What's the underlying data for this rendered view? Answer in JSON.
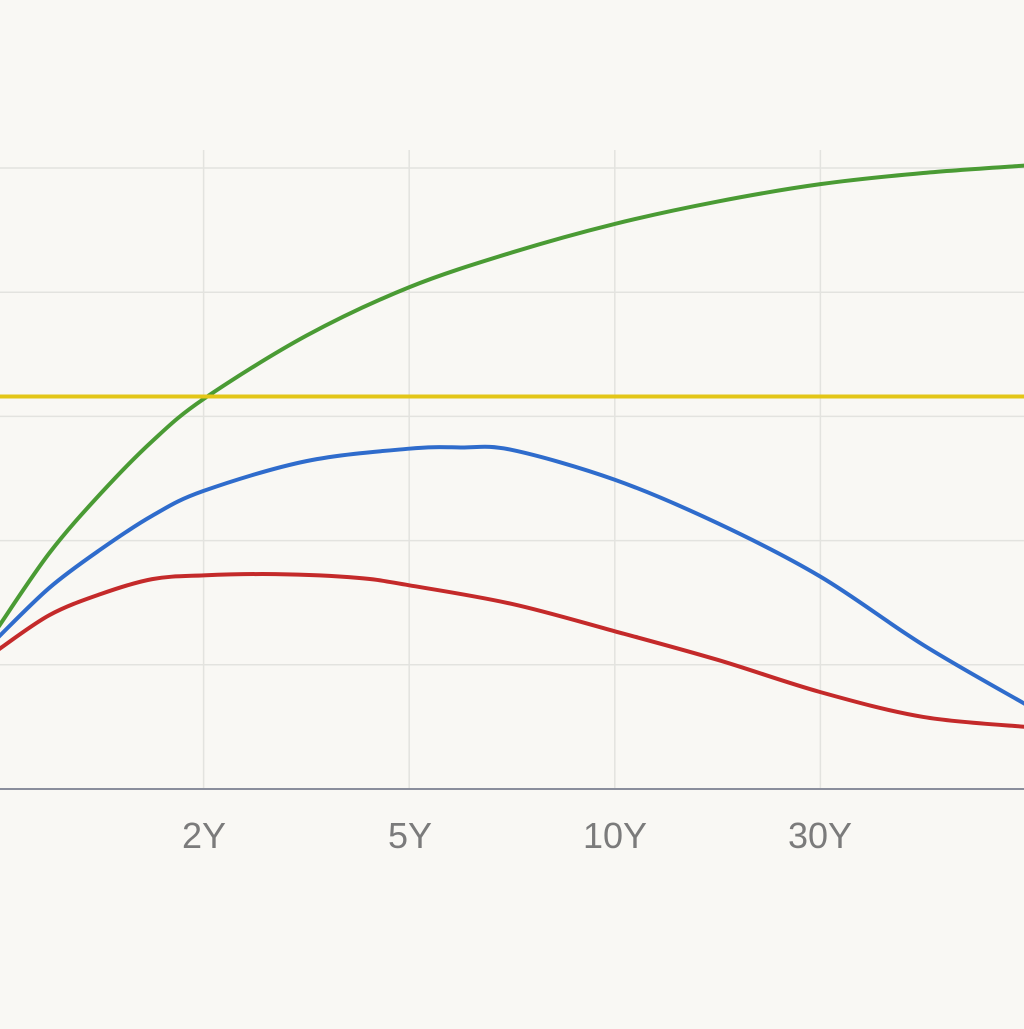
{
  "chart_data": {
    "type": "line",
    "x": [
      0,
      1,
      2,
      3,
      4,
      5
    ],
    "x_tick_labels": [
      "",
      "2Y",
      "5Y",
      "10Y",
      "30Y",
      ""
    ],
    "xlim": [
      0,
      5
    ],
    "ylim": [
      0,
      5
    ],
    "grid": true,
    "series": [
      {
        "color": "#4a9b34",
        "values": [
          [
            0.0,
            1.3
          ],
          [
            0.25,
            1.9
          ],
          [
            0.5,
            2.38
          ],
          [
            0.75,
            2.8
          ],
          [
            1.0,
            3.14
          ],
          [
            1.5,
            3.65
          ],
          [
            2.0,
            4.04
          ],
          [
            2.5,
            4.32
          ],
          [
            3.0,
            4.55
          ],
          [
            3.5,
            4.73
          ],
          [
            4.0,
            4.87
          ],
          [
            4.5,
            4.96
          ],
          [
            5.0,
            5.02
          ]
        ]
      },
      {
        "color": "#e3c617",
        "values": [
          [
            0.0,
            3.16
          ],
          [
            5.0,
            3.16
          ]
        ]
      },
      {
        "color": "#2f6ccc",
        "values": [
          [
            0.0,
            1.22
          ],
          [
            0.25,
            1.62
          ],
          [
            0.5,
            1.93
          ],
          [
            0.75,
            2.2
          ],
          [
            1.0,
            2.4
          ],
          [
            1.5,
            2.64
          ],
          [
            2.0,
            2.74
          ],
          [
            2.25,
            2.75
          ],
          [
            2.5,
            2.73
          ],
          [
            3.0,
            2.49
          ],
          [
            3.5,
            2.14
          ],
          [
            4.0,
            1.71
          ],
          [
            4.5,
            1.16
          ],
          [
            5.0,
            0.68
          ]
        ]
      },
      {
        "color": "#c42a2a",
        "values": [
          [
            0.0,
            1.12
          ],
          [
            0.25,
            1.4
          ],
          [
            0.5,
            1.57
          ],
          [
            0.75,
            1.69
          ],
          [
            1.0,
            1.72
          ],
          [
            1.35,
            1.73
          ],
          [
            1.75,
            1.7
          ],
          [
            2.0,
            1.64
          ],
          [
            2.5,
            1.49
          ],
          [
            3.0,
            1.27
          ],
          [
            3.5,
            1.04
          ],
          [
            4.0,
            0.78
          ],
          [
            4.5,
            0.58
          ],
          [
            5.0,
            0.5
          ]
        ]
      }
    ],
    "colors": {
      "background": "#f9f8f4",
      "grid": "#e3e3df",
      "axis": "#8a8e9c",
      "tick_label": "#7b7b7b"
    }
  }
}
